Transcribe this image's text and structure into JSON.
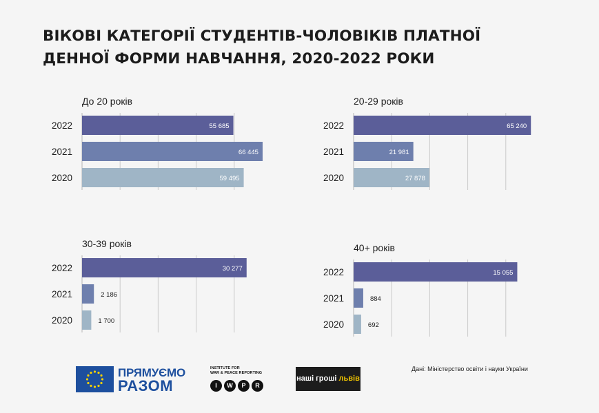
{
  "title": {
    "line1": "Вікові категорії студентів-чоловіків платної",
    "line2": "денної форми навчання, 2020-2022 роки"
  },
  "colors": {
    "bar_2022": "#5b5e99",
    "bar_2021": "#6e7fad",
    "bar_2020": "#9fb5c6",
    "grid": "#c9c9c9"
  },
  "chart_data": [
    {
      "type": "bar",
      "orientation": "horizontal",
      "title": "До 20 років",
      "categories": [
        "2022",
        "2021",
        "2020"
      ],
      "values": [
        55685,
        66445,
        59495
      ],
      "value_labels": [
        "55 685",
        "66 445",
        "59 495"
      ],
      "xlim": [
        0,
        70000
      ],
      "grid": true
    },
    {
      "type": "bar",
      "orientation": "horizontal",
      "title": "20-29 років",
      "categories": [
        "2022",
        "2021",
        "2020"
      ],
      "values": [
        65240,
        21981,
        27878
      ],
      "value_labels": [
        "65 240",
        "21 981",
        "27 878"
      ],
      "xlim": [
        0,
        70000
      ],
      "grid": true
    },
    {
      "type": "bar",
      "orientation": "horizontal",
      "title": "30-39 років",
      "categories": [
        "2022",
        "2021",
        "2020"
      ],
      "values": [
        30277,
        2186,
        1700
      ],
      "value_labels": [
        "30 277",
        "2 186",
        "1 700"
      ],
      "xlim": [
        0,
        35000
      ],
      "grid": true
    },
    {
      "type": "bar",
      "orientation": "horizontal",
      "title": "40+ років",
      "categories": [
        "2022",
        "2021",
        "2020"
      ],
      "values": [
        15055,
        884,
        692
      ],
      "value_labels": [
        "15 055",
        "884",
        "692"
      ],
      "xlim": [
        0,
        17500
      ],
      "grid": true
    }
  ],
  "footer": {
    "eu_line1": "ПРЯМУЄМО",
    "eu_line2": "РАЗОМ",
    "iwpr_line1": "INSTITUTE FOR",
    "iwpr_line2": "WAR & PEACE REPORTING",
    "iwpr_letters": [
      "I",
      "W",
      "P",
      "R"
    ],
    "ng_main": "наші гроші",
    "ng_accent": "львів",
    "source": "Дані: Міністерство освіти і науки України"
  }
}
